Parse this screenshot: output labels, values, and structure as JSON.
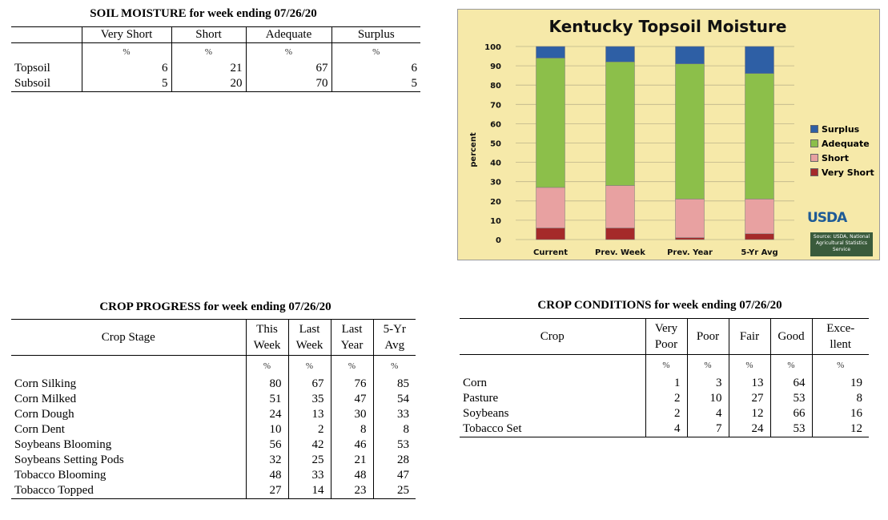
{
  "soil_moisture": {
    "title": "SOIL MOISTURE for week ending 07/26/20",
    "columns": [
      "Very Short",
      "Short",
      "Adequate",
      "Surplus"
    ],
    "unit": "%",
    "rows": [
      {
        "label": "Topsoil",
        "values": [
          "6",
          "21",
          "67",
          "6"
        ]
      },
      {
        "label": "Subsoil",
        "values": [
          "5",
          "20",
          "70",
          "5"
        ]
      }
    ]
  },
  "chart_data": {
    "type": "bar",
    "stacked": true,
    "title": "Kentucky Topsoil Moisture",
    "ylabel": "percent",
    "xlabel": "",
    "ylim": [
      0,
      100
    ],
    "yticks": [
      0,
      10,
      20,
      30,
      40,
      50,
      60,
      70,
      80,
      90,
      100
    ],
    "categories": [
      "Current",
      "Prev. Week",
      "Prev. Year",
      "5-Yr Avg"
    ],
    "series": [
      {
        "name": "Very Short",
        "color": "#a52a2a",
        "values": [
          6,
          6,
          1,
          3
        ]
      },
      {
        "name": "Short",
        "color": "#e8a1a1",
        "values": [
          21,
          22,
          20,
          18
        ]
      },
      {
        "name": "Adequate",
        "color": "#8cbf4a",
        "values": [
          67,
          64,
          70,
          65
        ]
      },
      {
        "name": "Surplus",
        "color": "#2e5fa5",
        "values": [
          6,
          8,
          9,
          14
        ]
      }
    ],
    "legend": [
      "Surplus",
      "Adequate",
      "Short",
      "Very Short"
    ],
    "legend_position": "right",
    "grid": true,
    "logo_text": "USDA",
    "source_text": "Source: USDA, National Agricultural Statistics Service"
  },
  "crop_progress": {
    "title": "CROP PROGRESS for week ending 07/26/20",
    "stage_header": "Crop Stage",
    "columns": [
      [
        "This",
        "Week"
      ],
      [
        "Last",
        "Week"
      ],
      [
        "Last",
        "Year"
      ],
      [
        "5-Yr",
        "Avg"
      ]
    ],
    "unit": "%",
    "rows": [
      {
        "label": "Corn Silking",
        "values": [
          "80",
          "67",
          "76",
          "85"
        ]
      },
      {
        "label": "Corn Milked",
        "values": [
          "51",
          "35",
          "47",
          "54"
        ]
      },
      {
        "label": "Corn Dough",
        "values": [
          "24",
          "13",
          "30",
          "33"
        ]
      },
      {
        "label": "Corn Dent",
        "values": [
          "10",
          "2",
          "8",
          "8"
        ]
      },
      {
        "label": "Soybeans Blooming",
        "values": [
          "56",
          "42",
          "46",
          "53"
        ]
      },
      {
        "label": "Soybeans Setting Pods",
        "values": [
          "32",
          "25",
          "21",
          "28"
        ]
      },
      {
        "label": "Tobacco Blooming",
        "values": [
          "48",
          "33",
          "48",
          "47"
        ]
      },
      {
        "label": "Tobacco Topped",
        "values": [
          "27",
          "14",
          "23",
          "25"
        ]
      }
    ]
  },
  "crop_conditions": {
    "title": "CROP CONDITIONS for week ending 07/26/20",
    "crop_header": "Crop",
    "columns": [
      [
        "Very",
        "Poor"
      ],
      [
        "Poor",
        ""
      ],
      [
        "Fair",
        ""
      ],
      [
        "Good",
        ""
      ],
      [
        "Exce-",
        "llent"
      ]
    ],
    "unit": "%",
    "rows": [
      {
        "label": "Corn",
        "values": [
          "1",
          "3",
          "13",
          "64",
          "19"
        ]
      },
      {
        "label": "Pasture",
        "values": [
          "2",
          "10",
          "27",
          "53",
          "8"
        ]
      },
      {
        "label": "Soybeans",
        "values": [
          "2",
          "4",
          "12",
          "66",
          "16"
        ]
      },
      {
        "label": "Tobacco Set",
        "values": [
          "4",
          "7",
          "24",
          "53",
          "12"
        ]
      }
    ]
  }
}
